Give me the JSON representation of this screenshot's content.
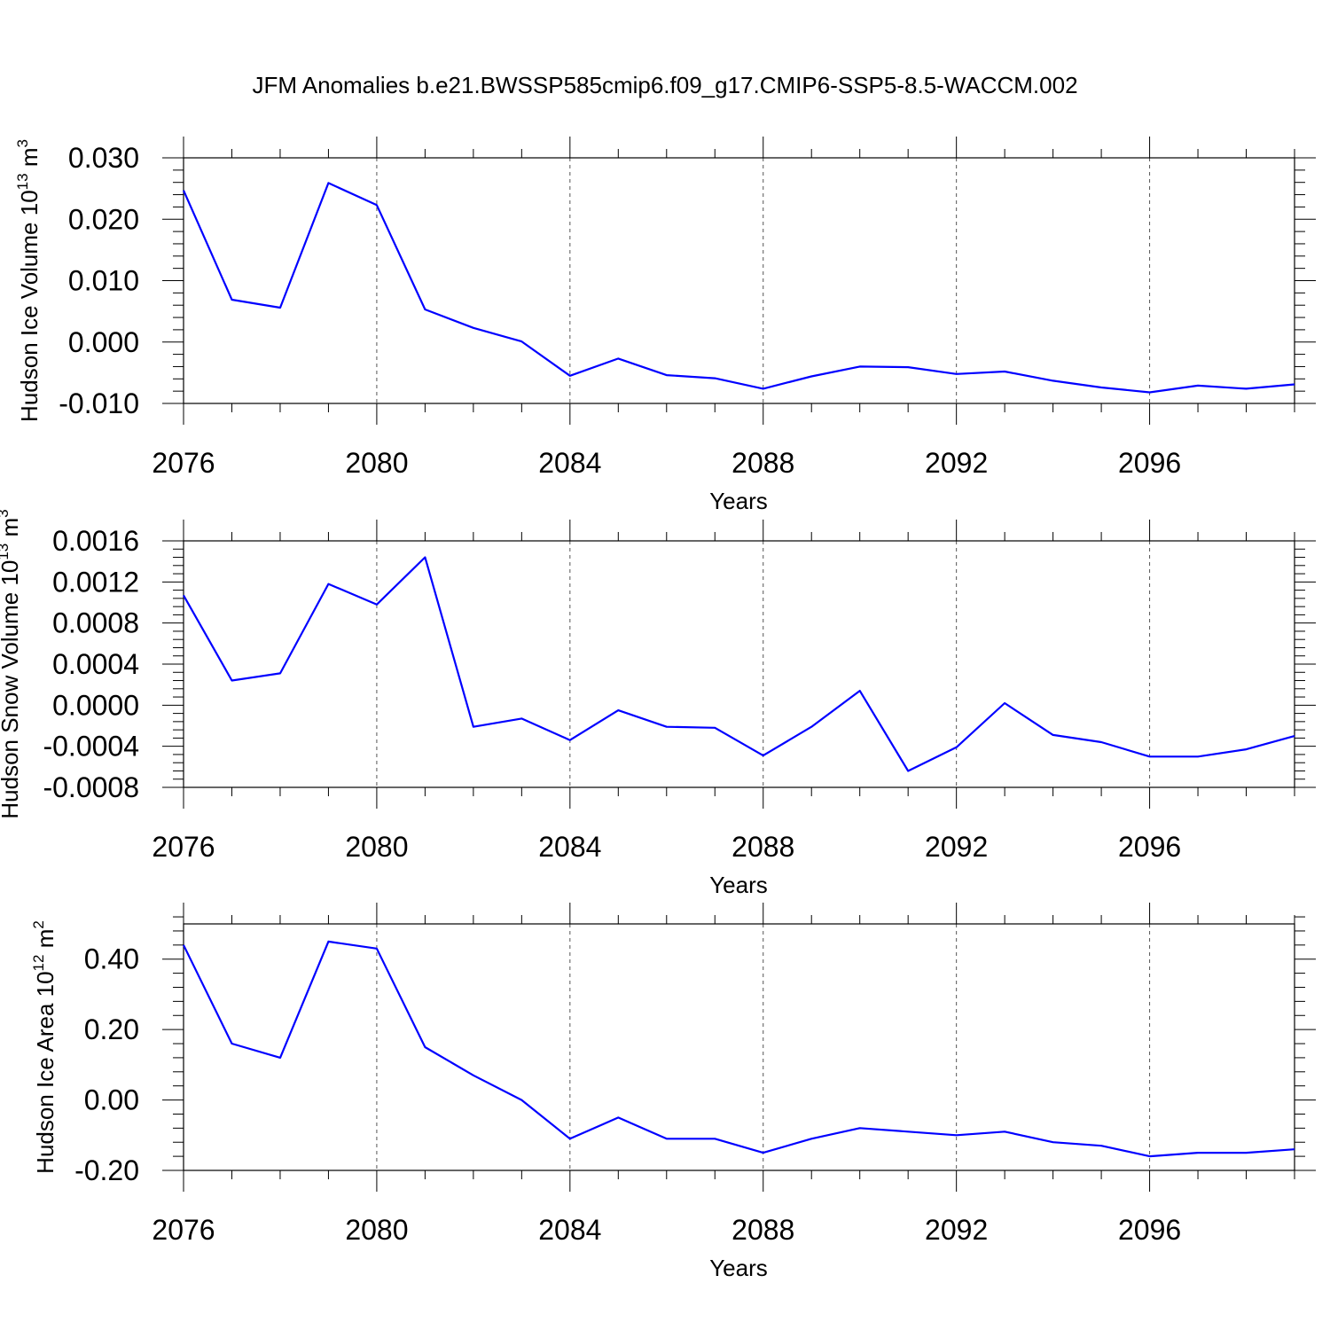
{
  "title": "JFM Anomalies b.e21.BWSSP585cmip6.f09_g17.CMIP6-SSP5-8.5-WACCM.002",
  "line_color": "#0000ff",
  "chart_data": [
    {
      "type": "line",
      "ylabel": "Hudson Ice Volume 10",
      "ylabel_exp": "13",
      "ylabel_unit": " m",
      "ylabel_unit_exp": "3",
      "xlabel": "Years",
      "xlim": [
        2076,
        2099
      ],
      "ylim": [
        -0.01,
        0.03
      ],
      "yticks": [
        -0.01,
        0.0,
        0.01,
        0.02,
        0.03
      ],
      "ytick_labels": [
        "-0.010",
        "0.000",
        "0.010",
        "0.020",
        "0.030"
      ],
      "xticks": [
        2076,
        2080,
        2084,
        2088,
        2092,
        2096
      ],
      "xtick_labels": [
        "2076",
        "2080",
        "2084",
        "2088",
        "2092",
        "2096"
      ],
      "grid_x": [
        2080,
        2084,
        2088,
        2092,
        2096
      ],
      "x": [
        2076,
        2077,
        2078,
        2079,
        2080,
        2081,
        2082,
        2083,
        2084,
        2085,
        2086,
        2087,
        2088,
        2089,
        2090,
        2091,
        2092,
        2093,
        2094,
        2095,
        2096,
        2097,
        2098,
        2099
      ],
      "values": [
        0.0247,
        0.0069,
        0.0056,
        0.0259,
        0.0223,
        0.0053,
        0.0023,
        0.0001,
        -0.0055,
        -0.0027,
        -0.0054,
        -0.0059,
        -0.0076,
        -0.0056,
        -0.004,
        -0.0041,
        -0.0052,
        -0.0048,
        -0.0063,
        -0.0074,
        -0.0082,
        -0.0071,
        -0.0076,
        -0.0069
      ]
    },
    {
      "type": "line",
      "ylabel": "Hudson Snow Volume 10",
      "ylabel_exp": "13",
      "ylabel_unit": " m",
      "ylabel_unit_exp": "3",
      "xlabel": "Years",
      "xlim": [
        2076,
        2099
      ],
      "ylim": [
        -0.0008,
        0.0016
      ],
      "yticks": [
        -0.0008,
        -0.0004,
        0.0,
        0.0004,
        0.0008,
        0.0012,
        0.0016
      ],
      "ytick_labels": [
        "-0.0008",
        "-0.0004",
        "0.0000",
        "0.0004",
        "0.0008",
        "0.0012",
        "0.0016"
      ],
      "xticks": [
        2076,
        2080,
        2084,
        2088,
        2092,
        2096
      ],
      "xtick_labels": [
        "2076",
        "2080",
        "2084",
        "2088",
        "2092",
        "2096"
      ],
      "grid_x": [
        2080,
        2084,
        2088,
        2092,
        2096
      ],
      "x": [
        2076,
        2077,
        2078,
        2079,
        2080,
        2081,
        2082,
        2083,
        2084,
        2085,
        2086,
        2087,
        2088,
        2089,
        2090,
        2091,
        2092,
        2093,
        2094,
        2095,
        2096,
        2097,
        2098,
        2099
      ],
      "values": [
        0.00107,
        0.00024,
        0.00031,
        0.00118,
        0.00098,
        0.00144,
        -0.00021,
        -0.00013,
        -0.00034,
        -5e-05,
        -0.00021,
        -0.00022,
        -0.00049,
        -0.00021,
        0.00014,
        -0.00064,
        -0.00041,
        2e-05,
        -0.00029,
        -0.00036,
        -0.0005,
        -0.0005,
        -0.00043,
        -0.0003
      ]
    },
    {
      "type": "line",
      "ylabel": "Hudson Ice Area 10",
      "ylabel_exp": "12",
      "ylabel_unit": " m",
      "ylabel_unit_exp": "2",
      "xlabel": "Years",
      "xlim": [
        2076,
        2099
      ],
      "ylim": [
        -0.2,
        0.5
      ],
      "yticks": [
        -0.2,
        0.0,
        0.2,
        0.4
      ],
      "ytick_labels": [
        "-0.20",
        "0.00",
        "0.20",
        "0.40"
      ],
      "xticks": [
        2076,
        2080,
        2084,
        2088,
        2092,
        2096
      ],
      "xtick_labels": [
        "2076",
        "2080",
        "2084",
        "2088",
        "2092",
        "2096"
      ],
      "grid_x": [
        2080,
        2084,
        2088,
        2092,
        2096
      ],
      "x": [
        2076,
        2077,
        2078,
        2079,
        2080,
        2081,
        2082,
        2083,
        2084,
        2085,
        2086,
        2087,
        2088,
        2089,
        2090,
        2091,
        2092,
        2093,
        2094,
        2095,
        2096,
        2097,
        2098,
        2099
      ],
      "values": [
        0.44,
        0.16,
        0.12,
        0.45,
        0.43,
        0.15,
        0.07,
        0.0,
        -0.11,
        -0.05,
        -0.11,
        -0.11,
        -0.15,
        -0.11,
        -0.08,
        -0.09,
        -0.1,
        -0.09,
        -0.12,
        -0.13,
        -0.16,
        -0.15,
        -0.15,
        -0.14
      ]
    }
  ]
}
